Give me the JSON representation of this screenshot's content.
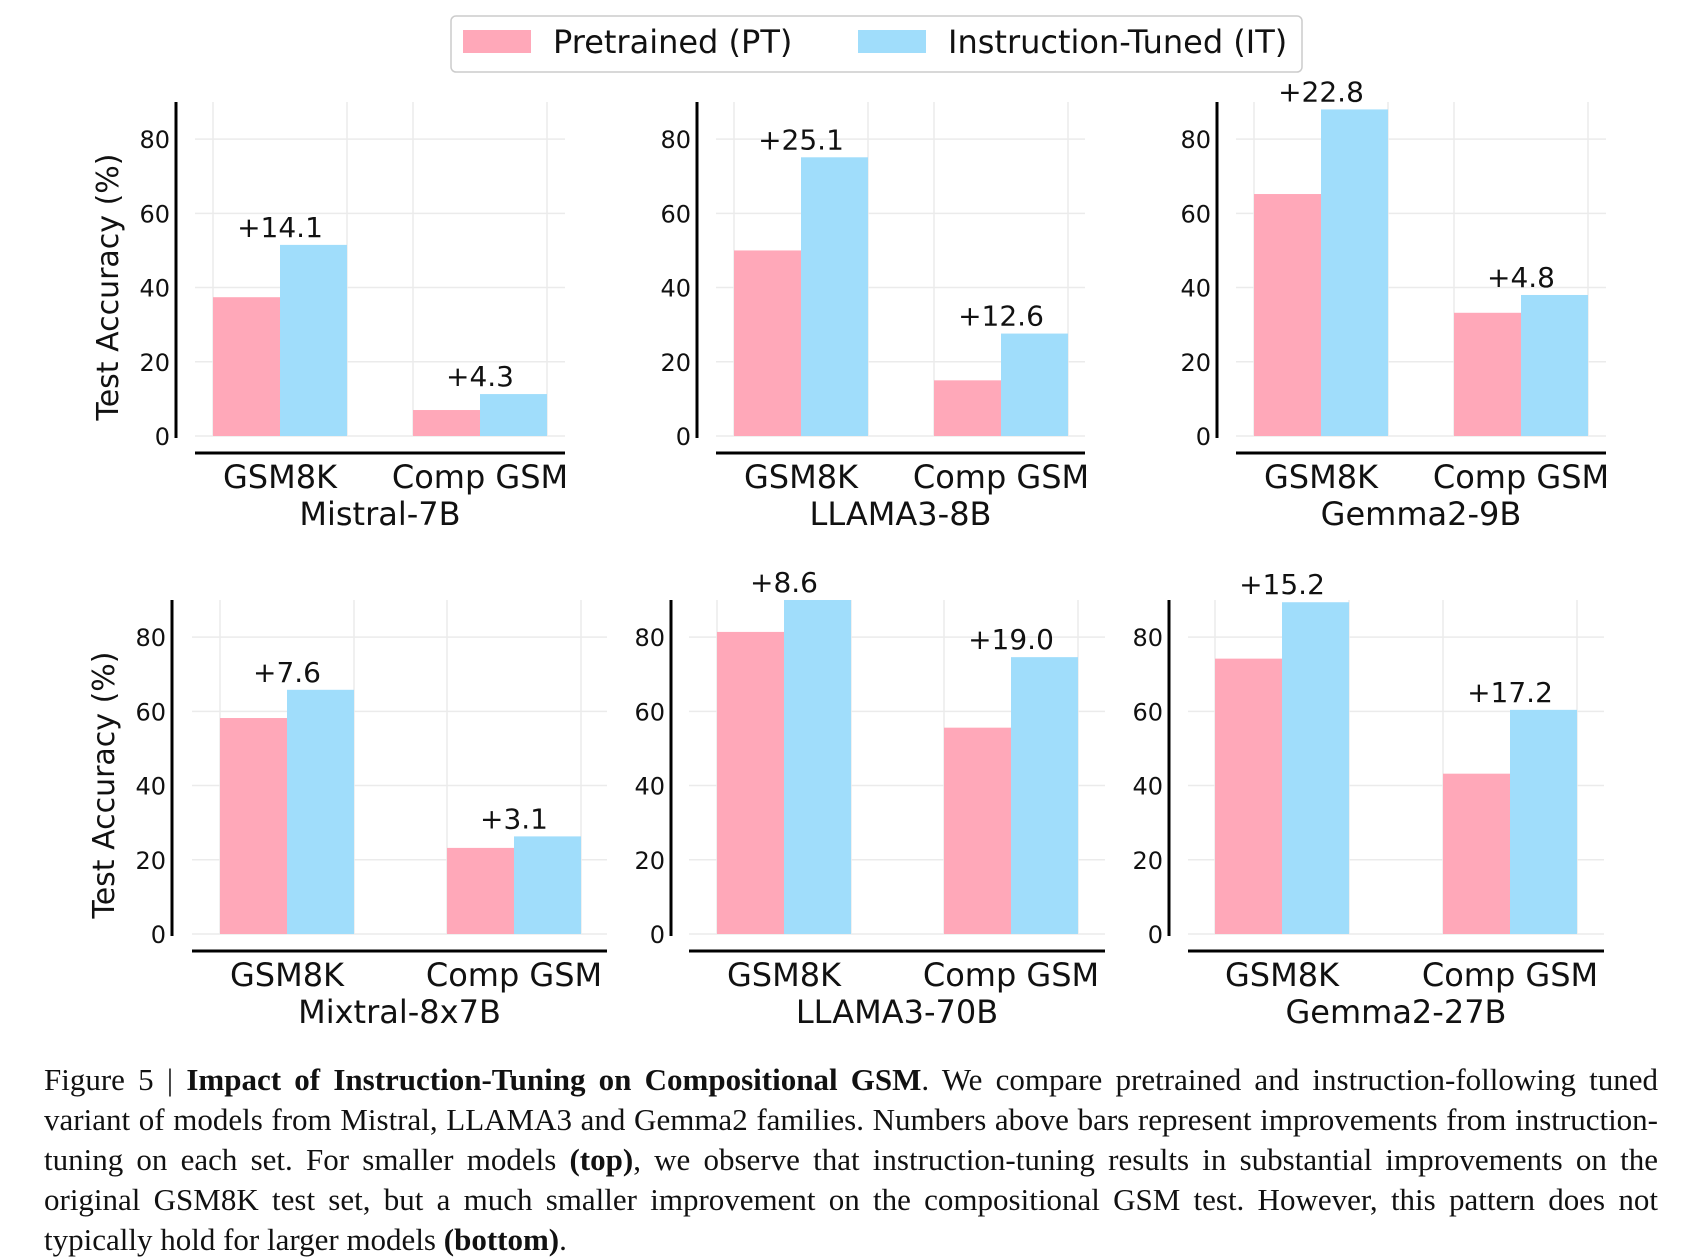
{
  "legend": [
    {
      "label": "Pretrained (PT)",
      "color": "#ffa8b9"
    },
    {
      "label": "Instruction-Tuned (IT)",
      "color": "#a0ddfb"
    }
  ],
  "chart_data": [
    {
      "type": "bar",
      "model": "Mistral-7B",
      "categories": [
        "GSM8K",
        "Comp GSM"
      ],
      "series": [
        {
          "name": "Pretrained (PT)",
          "values": [
            37.4,
            7.0
          ]
        },
        {
          "name": "Instruction-Tuned (IT)",
          "values": [
            51.5,
            11.3
          ]
        }
      ],
      "annotations": [
        "+14.1",
        "+4.3"
      ],
      "ylabel": "Test Accuracy (%)",
      "ylim": [
        0,
        90
      ],
      "yticks": [
        0,
        20,
        40,
        60,
        80
      ],
      "grid": true
    },
    {
      "type": "bar",
      "model": "LLAMA3-8B",
      "categories": [
        "GSM8K",
        "Comp GSM"
      ],
      "series": [
        {
          "name": "Pretrained (PT)",
          "values": [
            50.0,
            15.0
          ]
        },
        {
          "name": "Instruction-Tuned (IT)",
          "values": [
            75.1,
            27.6
          ]
        }
      ],
      "annotations": [
        "+25.1",
        "+12.6"
      ],
      "ylabel": "",
      "ylim": [
        0,
        90
      ],
      "yticks": [
        0,
        20,
        40,
        60,
        80
      ],
      "grid": true
    },
    {
      "type": "bar",
      "model": "Gemma2-9B",
      "categories": [
        "GSM8K",
        "Comp GSM"
      ],
      "series": [
        {
          "name": "Pretrained (PT)",
          "values": [
            65.2,
            33.2
          ]
        },
        {
          "name": "Instruction-Tuned (IT)",
          "values": [
            88.0,
            38.0
          ]
        }
      ],
      "annotations": [
        "+22.8",
        "+4.8"
      ],
      "ylabel": "",
      "ylim": [
        0,
        90
      ],
      "yticks": [
        0,
        20,
        40,
        60,
        80
      ],
      "grid": true
    },
    {
      "type": "bar",
      "model": "Mixtral-8x7B",
      "categories": [
        "GSM8K",
        "Comp GSM"
      ],
      "series": [
        {
          "name": "Pretrained (PT)",
          "values": [
            58.2,
            23.2
          ]
        },
        {
          "name": "Instruction-Tuned (IT)",
          "values": [
            65.8,
            26.3
          ]
        }
      ],
      "annotations": [
        "+7.6",
        "+3.1"
      ],
      "ylabel": "Test Accuracy (%)",
      "ylim": [
        0,
        90
      ],
      "yticks": [
        0,
        20,
        40,
        60,
        80
      ],
      "grid": true
    },
    {
      "type": "bar",
      "model": "LLAMA3-70B",
      "categories": [
        "GSM8K",
        "Comp GSM"
      ],
      "series": [
        {
          "name": "Pretrained (PT)",
          "values": [
            81.4,
            55.6
          ]
        },
        {
          "name": "Instruction-Tuned (IT)",
          "values": [
            90.0,
            74.6
          ]
        }
      ],
      "annotations": [
        "+8.6",
        "+19.0"
      ],
      "ylabel": "",
      "ylim": [
        0,
        90
      ],
      "yticks": [
        0,
        20,
        40,
        60,
        80
      ],
      "grid": true
    },
    {
      "type": "bar",
      "model": "Gemma2-27B",
      "categories": [
        "GSM8K",
        "Comp GSM"
      ],
      "series": [
        {
          "name": "Pretrained (PT)",
          "values": [
            74.2,
            43.2
          ]
        },
        {
          "name": "Instruction-Tuned (IT)",
          "values": [
            89.4,
            60.4
          ]
        }
      ],
      "annotations": [
        "+15.2",
        "+17.2"
      ],
      "ylabel": "",
      "ylim": [
        0,
        90
      ],
      "yticks": [
        0,
        20,
        40,
        60,
        80
      ],
      "grid": true
    }
  ],
  "caption": {
    "prefix": "Figure 5 | ",
    "title": "Impact of Instruction-Tuning on Compositional GSM",
    "part1": ". We compare pretrained and instruction-following tuned variant of models from Mistral, LLAMA3 and Gemma2 families. Numbers above bars represent improvements from instruction-tuning on each set.  For smaller models ",
    "top": "(top)",
    "part2": ", we observe that instruction-tuning results in substantial improvements on the original GSM8K test set, but a much smaller improvement on the compositional GSM test. However, this pattern does not typically hold for larger models ",
    "bottom": "(bottom)",
    "part3": "."
  }
}
